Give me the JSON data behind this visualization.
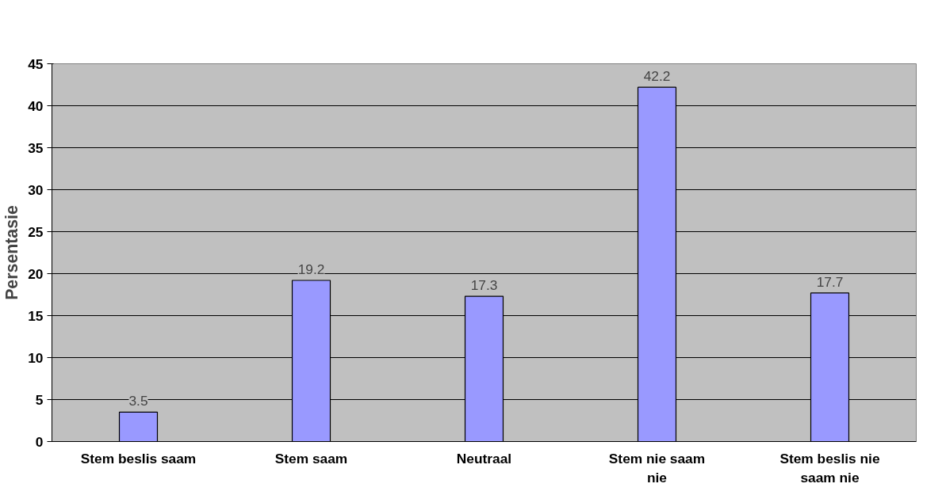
{
  "chart_data": {
    "type": "bar",
    "ylabel": "Persentasie",
    "categories": [
      "Stem beslis saam",
      "Stem saam",
      "Neutraal",
      "Stem nie saam nie",
      "Stem beslis nie saam nie"
    ],
    "values": [
      3.5,
      19.2,
      17.3,
      42.2,
      17.7
    ],
    "color": "#9999ff",
    "ylim": [
      0,
      45
    ],
    "yticks": [
      0,
      5,
      10,
      15,
      20,
      25,
      30,
      35,
      40,
      45
    ],
    "grid": "y",
    "data_labels": true
  }
}
